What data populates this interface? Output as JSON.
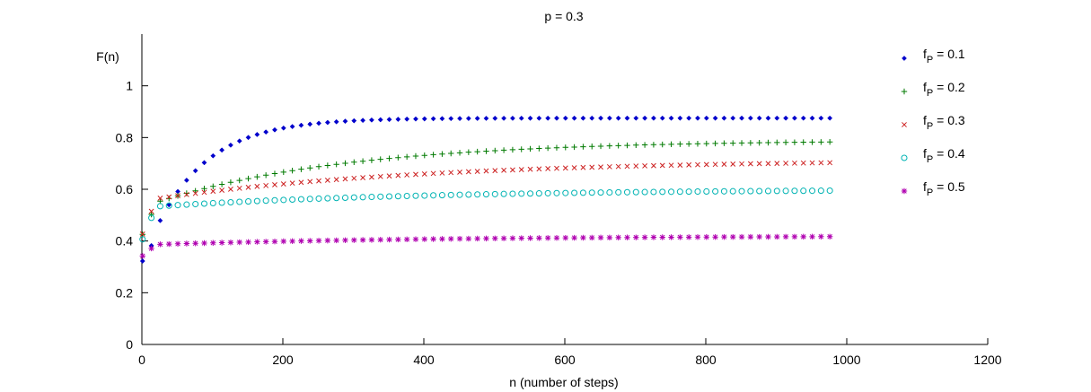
{
  "chart_data": {
    "type": "scatter",
    "title": "p = 0.3",
    "xlabel": "n (number of steps)",
    "ylabel": "F(n)",
    "xlim": [
      0,
      1200
    ],
    "ylim": [
      0,
      1.2
    ],
    "xticks": [
      "0",
      "200",
      "400",
      "600",
      "800",
      "1000",
      "1200"
    ],
    "yticks": [
      "0",
      "0.2",
      "0.4",
      "0.6",
      "0.8",
      "1"
    ],
    "grid": false,
    "legend_position": "top-right",
    "x": {
      "start": 1,
      "step": 12.5,
      "count": 79
    },
    "series": [
      {
        "name": "f_P = 0.1",
        "legend_main": "f",
        "legend_sub": "P",
        "legend_rest": " = 0.1",
        "marker": "diamond",
        "color": "#0000cc",
        "curve": {
          "end": 0.875,
          "amp": 0.56,
          "tau": 75,
          "start": 0.33
        }
      },
      {
        "name": "f_P = 0.2",
        "legend_main": "f",
        "legend_sub": "P",
        "legend_rest": " = 0.2",
        "marker": "plus",
        "color": "#007a00",
        "curve": {
          "end": 0.79,
          "amp": 0.26,
          "tau": 270,
          "start": 0.42
        }
      },
      {
        "name": "f_P = 0.3",
        "legend_main": "f",
        "legend_sub": "P",
        "legend_rest": " = 0.3",
        "marker": "x",
        "color": "#cc2020",
        "curve": {
          "end": 0.715,
          "amp": 0.16,
          "tau": 380,
          "start": 0.42
        }
      },
      {
        "name": "f_P = 0.4",
        "legend_main": "f",
        "legend_sub": "P",
        "legend_rest": " = 0.4",
        "marker": "circle",
        "color": "#00b3b3",
        "curve": {
          "end": 0.6,
          "amp": 0.07,
          "tau": 380,
          "start": 0.4
        }
      },
      {
        "name": "f_P = 0.5",
        "legend_main": "f",
        "legend_sub": "P",
        "legend_rest": " = 0.5",
        "marker": "star",
        "color": "#b000b0",
        "curve": {
          "end": 0.42,
          "amp": 0.035,
          "tau": 400,
          "start": 0.34
        }
      }
    ]
  }
}
